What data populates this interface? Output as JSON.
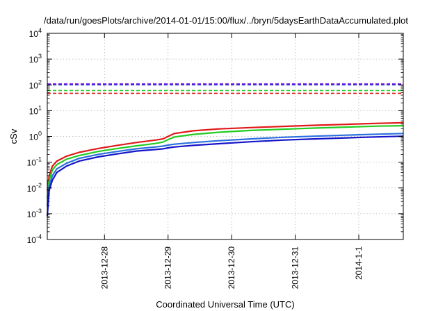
{
  "chart_data": {
    "type": "line",
    "title": "/data/run/goesPlots/archive/2014-01-01/15:00/flux/../bryn/5daysEarthDataAccumulated.plot",
    "xlabel": "Coordinated Universal Time (UTC)",
    "ylabel": "cSv",
    "yscale": "log",
    "ylim_exp": [
      -4,
      4
    ],
    "xlim": [
      0.0,
      5.6
    ],
    "x_ticks": [
      {
        "x": 0.9,
        "label": "2013-12-28"
      },
      {
        "x": 1.9,
        "label": "2013-12-29"
      },
      {
        "x": 2.9,
        "label": "2013-12-30"
      },
      {
        "x": 3.9,
        "label": "2013-12-31"
      },
      {
        "x": 4.9,
        "label": "2014-1-1"
      }
    ],
    "y_ticks": [
      {
        "exp": -4,
        "base": "10",
        "sup": "-4"
      },
      {
        "exp": -3,
        "base": "10",
        "sup": "-3"
      },
      {
        "exp": -2,
        "base": "10",
        "sup": "-2"
      },
      {
        "exp": -1,
        "base": "10",
        "sup": "-1"
      },
      {
        "exp": 0,
        "base": "10",
        "sup": "0"
      },
      {
        "exp": 1,
        "base": "10",
        "sup": "1"
      },
      {
        "exp": 2,
        "base": "10",
        "sup": "2"
      },
      {
        "exp": 3,
        "base": "10",
        "sup": "3"
      },
      {
        "exp": 4,
        "base": "10",
        "sup": "4"
      }
    ],
    "grid": true,
    "reference_lines": [
      {
        "value": 110,
        "color": "#8a2be2"
      },
      {
        "value": 100,
        "color": "#1f1fd6"
      },
      {
        "value": 60,
        "color": "#22cc22"
      },
      {
        "value": 47,
        "color": "#e01818"
      }
    ],
    "series": [
      {
        "color": "#e01818",
        "x": [
          0.0,
          0.03,
          0.08,
          0.15,
          0.3,
          0.5,
          0.8,
          1.1,
          1.4,
          1.7,
          1.82,
          1.9,
          2.0,
          2.3,
          2.7,
          3.2,
          3.7,
          4.2,
          4.7,
          5.2,
          5.6
        ],
        "y": [
          0.008,
          0.03,
          0.07,
          0.11,
          0.17,
          0.24,
          0.34,
          0.45,
          0.58,
          0.72,
          0.8,
          1.0,
          1.3,
          1.65,
          1.95,
          2.2,
          2.45,
          2.7,
          2.95,
          3.2,
          3.4
        ]
      },
      {
        "color": "#22cc22",
        "x": [
          0.0,
          0.03,
          0.08,
          0.15,
          0.3,
          0.5,
          0.8,
          1.1,
          1.4,
          1.7,
          1.82,
          1.9,
          2.0,
          2.3,
          2.7,
          3.2,
          3.7,
          4.2,
          4.7,
          5.2,
          5.6
        ],
        "y": [
          0.004,
          0.02,
          0.05,
          0.08,
          0.13,
          0.18,
          0.26,
          0.34,
          0.43,
          0.53,
          0.6,
          0.75,
          0.95,
          1.2,
          1.45,
          1.7,
          1.9,
          2.1,
          2.3,
          2.5,
          2.6
        ]
      },
      {
        "color": "#2a6fdd",
        "x": [
          0.0,
          0.03,
          0.08,
          0.15,
          0.3,
          0.5,
          0.8,
          1.1,
          1.4,
          1.7,
          1.82,
          1.9,
          2.0,
          2.3,
          2.7,
          3.2,
          3.7,
          4.2,
          4.7,
          5.2,
          5.6
        ],
        "y": [
          0.002,
          0.012,
          0.03,
          0.055,
          0.09,
          0.14,
          0.2,
          0.26,
          0.33,
          0.39,
          0.42,
          0.46,
          0.5,
          0.58,
          0.68,
          0.8,
          0.92,
          1.02,
          1.12,
          1.22,
          1.3
        ]
      },
      {
        "color": "#1414c8",
        "x": [
          0.0,
          0.03,
          0.08,
          0.15,
          0.3,
          0.5,
          0.8,
          1.1,
          1.4,
          1.7,
          1.82,
          1.9,
          2.0,
          2.3,
          2.7,
          3.2,
          3.7,
          4.2,
          4.7,
          5.2,
          5.6
        ],
        "y": [
          0.0008,
          0.008,
          0.02,
          0.04,
          0.07,
          0.11,
          0.16,
          0.21,
          0.27,
          0.31,
          0.33,
          0.36,
          0.39,
          0.45,
          0.52,
          0.62,
          0.72,
          0.8,
          0.88,
          0.96,
          1.02
        ]
      }
    ]
  }
}
